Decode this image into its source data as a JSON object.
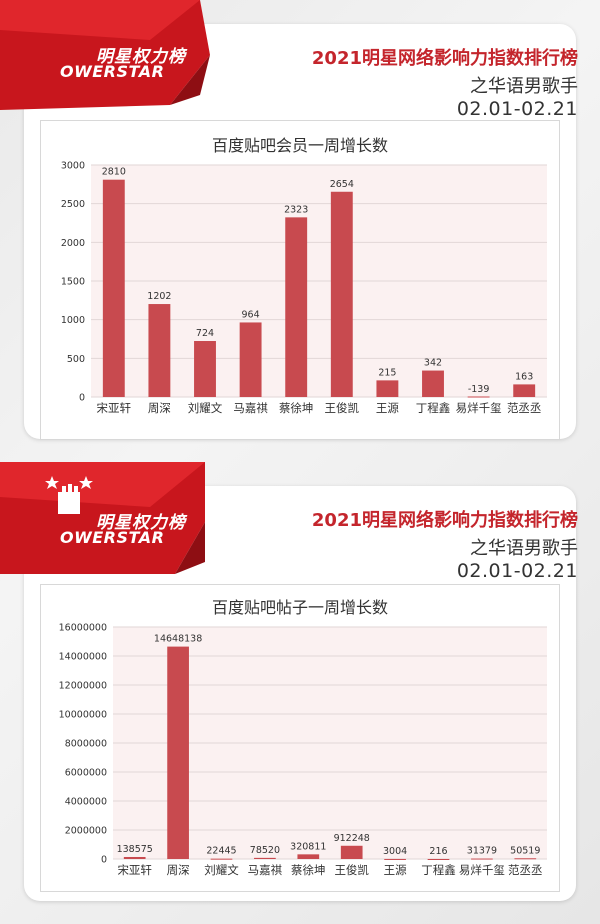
{
  "panels": [
    {
      "brand": {
        "cn": "明星权力榜",
        "en": "OWERSTAR"
      },
      "header": {
        "title": "2021明星网络影响力指数排行榜",
        "subtitle": "之华语男歌手",
        "date_range": "02.01-02.21"
      },
      "chart_data": {
        "type": "bar",
        "title": "百度贴吧会员一周增长数",
        "categories": [
          "宋亚轩",
          "周深",
          "刘耀文",
          "马嘉祺",
          "蔡徐坤",
          "王俊凯",
          "王源",
          "丁程鑫",
          "易烊千玺",
          "范丞丞"
        ],
        "values": [
          2810,
          1202,
          724,
          964,
          2323,
          2654,
          215,
          342,
          -139,
          163
        ],
        "value_labels": [
          "2810",
          "1202",
          "724",
          "964",
          "2323",
          "2654",
          "215",
          "342",
          "-139",
          "163"
        ],
        "ylim": [
          0,
          3000
        ],
        "yticks": [
          "0",
          "500",
          "1000",
          "1500",
          "2000",
          "2500",
          "3000"
        ],
        "ytick_values": [
          0,
          500,
          1000,
          1500,
          2000,
          2500,
          3000
        ],
        "grid": true,
        "bar_color": "#c84a4f"
      }
    },
    {
      "brand": {
        "cn": "明星权力榜",
        "en": "OWERSTAR"
      },
      "header": {
        "title": "2021明星网络影响力指数排行榜",
        "subtitle": "之华语男歌手",
        "date_range": "02.01-02.21"
      },
      "chart_data": {
        "type": "bar",
        "title": "百度贴吧帖子一周增长数",
        "categories": [
          "宋亚轩",
          "周深",
          "刘耀文",
          "马嘉祺",
          "蔡徐坤",
          "王俊凯",
          "王源",
          "丁程鑫",
          "易烊千玺",
          "范丞丞"
        ],
        "values": [
          138575,
          14648138,
          22445,
          78520,
          320811,
          912248,
          3004,
          216,
          31379,
          50519
        ],
        "value_labels": [
          "138575",
          "14648138",
          "22445",
          "78520",
          "320811",
          "912248",
          "3004",
          "216",
          "31379",
          "50519"
        ],
        "ylim": [
          0,
          16000000
        ],
        "yticks": [
          "0",
          "2000000",
          "4000000",
          "6000000",
          "8000000",
          "10000000",
          "12000000",
          "14000000",
          "16000000"
        ],
        "ytick_values": [
          0,
          2000000,
          4000000,
          6000000,
          8000000,
          10000000,
          12000000,
          14000000,
          16000000
        ],
        "grid": true,
        "bar_color": "#c84a4f"
      }
    }
  ]
}
